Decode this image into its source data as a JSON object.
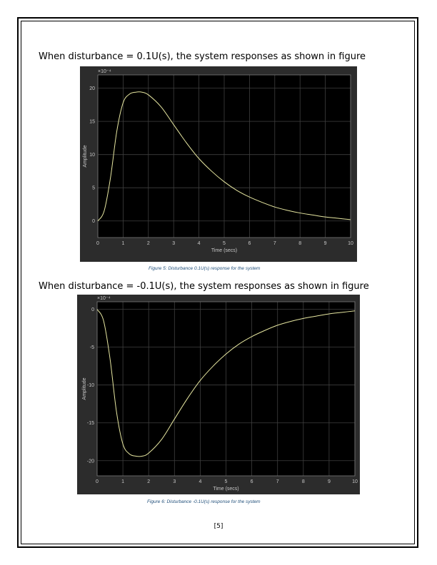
{
  "page": {
    "heading1": "When disturbance = 0.1U(s), the system responses as shown in figure",
    "caption1": "Figure 5: Disturbance 0.1U(s) response for the system",
    "heading2": "When disturbance = -0.1U(s), the system responses as shown in figure",
    "caption2": "Figure 6: Disturbance -0.1U(s) response for the system",
    "page_number": "[5]"
  },
  "chart_data": [
    {
      "type": "line",
      "xlabel": "Time (secs)",
      "ylabel": "Amplitude",
      "exponent_label": "×10⁻⁴",
      "xlim": [
        0,
        10
      ],
      "ylim": [
        -2.5,
        22
      ],
      "xticks": [
        "0",
        "1",
        "2",
        "3",
        "4",
        "5",
        "6",
        "7",
        "8",
        "9",
        "10"
      ],
      "yticks": [
        "0",
        "5",
        "10",
        "15",
        "20"
      ],
      "ytick_values": [
        0,
        5,
        10,
        15,
        20
      ],
      "grid": true,
      "colors": {
        "background": "#000000",
        "panel": "#2c2c2c",
        "grid": "#3f3f3f",
        "line": "#e6e6a0"
      },
      "series": [
        {
          "x": [
            0,
            0.25,
            0.5,
            0.75,
            1.0,
            1.25,
            1.5,
            1.75,
            2.0,
            2.5,
            3.0,
            3.5,
            4.0,
            4.5,
            5.0,
            5.5,
            6.0,
            6.5,
            7.0,
            7.5,
            8.0,
            8.5,
            9.0,
            9.5,
            10.0
          ],
          "values": [
            0,
            1.5,
            6.5,
            13.5,
            17.8,
            19.1,
            19.4,
            19.4,
            19.0,
            17.2,
            14.5,
            11.8,
            9.4,
            7.5,
            5.9,
            4.6,
            3.6,
            2.8,
            2.1,
            1.6,
            1.2,
            0.9,
            0.6,
            0.4,
            0.2
          ]
        }
      ]
    },
    {
      "type": "line",
      "xlabel": "Time (secs)",
      "ylabel": "Amplitude",
      "exponent_label": "×10⁻⁴",
      "xlim": [
        0,
        10
      ],
      "ylim": [
        -22,
        1
      ],
      "xticks": [
        "0",
        "1",
        "2",
        "3",
        "4",
        "5",
        "6",
        "7",
        "8",
        "9",
        "10"
      ],
      "yticks": [
        "0",
        "-5",
        "-10",
        "-15",
        "-20"
      ],
      "ytick_values": [
        0,
        -5,
        -10,
        -15,
        -20
      ],
      "grid": true,
      "colors": {
        "background": "#000000",
        "panel": "#2c2c2c",
        "grid": "#3f3f3f",
        "line": "#e6e6a0"
      },
      "series": [
        {
          "x": [
            0,
            0.25,
            0.5,
            0.75,
            1.0,
            1.25,
            1.5,
            1.75,
            2.0,
            2.5,
            3.0,
            3.5,
            4.0,
            4.5,
            5.0,
            5.5,
            6.0,
            6.5,
            7.0,
            7.5,
            8.0,
            8.5,
            9.0,
            9.5,
            10.0
          ],
          "values": [
            0,
            -1.5,
            -6.5,
            -13.5,
            -17.8,
            -19.1,
            -19.4,
            -19.4,
            -19.0,
            -17.2,
            -14.5,
            -11.8,
            -9.4,
            -7.5,
            -5.9,
            -4.6,
            -3.6,
            -2.8,
            -2.1,
            -1.6,
            -1.2,
            -0.9,
            -0.6,
            -0.4,
            -0.2
          ]
        }
      ]
    }
  ]
}
